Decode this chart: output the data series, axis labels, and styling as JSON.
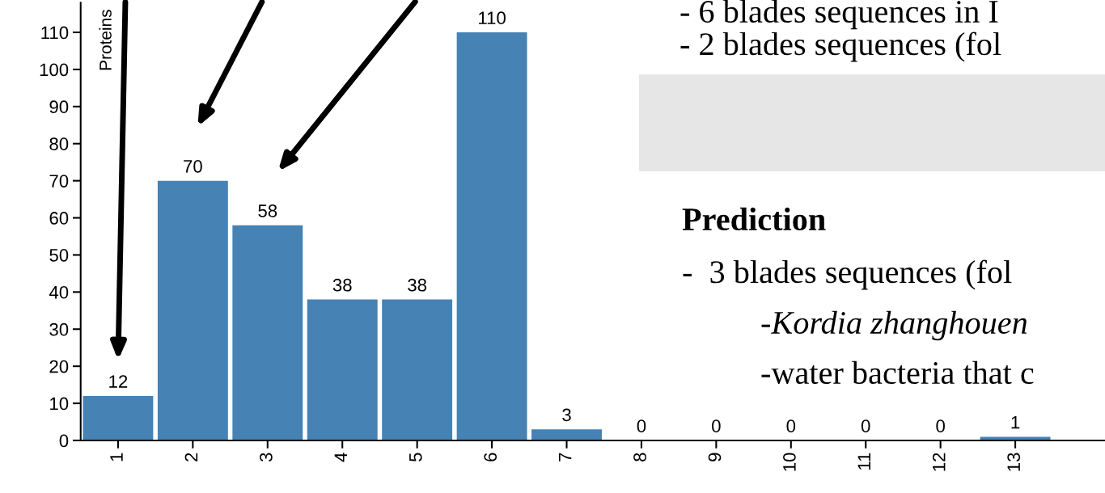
{
  "chart_data": {
    "type": "bar",
    "ylabel": "Proteins",
    "categories": [
      "1",
      "2",
      "3",
      "4",
      "5",
      "6",
      "7",
      "8",
      "9",
      "10",
      "11",
      "12",
      "13"
    ],
    "values": [
      12,
      70,
      58,
      38,
      38,
      110,
      3,
      0,
      0,
      0,
      0,
      0,
      1
    ],
    "color": "#4682b4",
    "ylim": [
      0,
      118
    ],
    "yticks": [
      0,
      10,
      20,
      30,
      40,
      50,
      60,
      70,
      80,
      90,
      100,
      110
    ],
    "data_labels": true,
    "grid": false,
    "annotations": [
      "- 6 blades sequences in I",
      "- 2 blades sequences (fol",
      "Prediction",
      "-  3 blades sequences (fol",
      "-Kordia zhanghouen",
      "-water bacteria that c"
    ]
  }
}
